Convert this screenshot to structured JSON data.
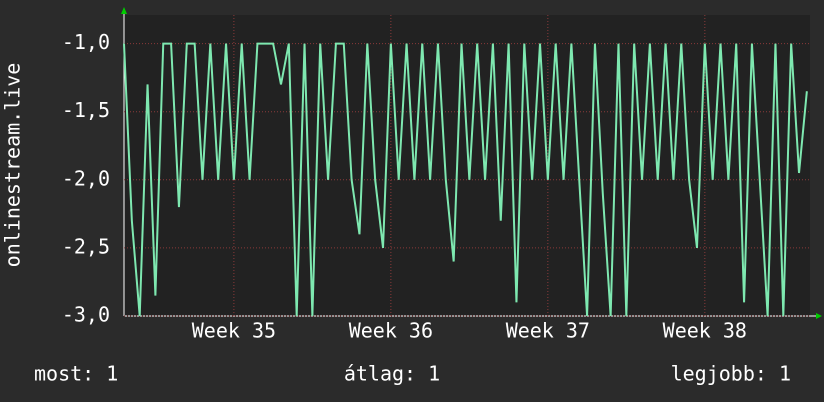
{
  "chart_data": {
    "type": "line",
    "y_label": "onlinestream.live",
    "xlim": [
      34.3,
      38.67
    ],
    "xticks": [
      {
        "value": 35,
        "label": "Week 35"
      },
      {
        "value": 36,
        "label": "Week 36"
      },
      {
        "value": 37,
        "label": "Week 37"
      },
      {
        "value": 38,
        "label": "Week 38"
      }
    ],
    "ylim": [
      -3,
      -0.79
    ],
    "yticks": [
      {
        "value": -3,
        "label": "-3,0"
      },
      {
        "value": -2.5,
        "label": "-2,5"
      },
      {
        "value": -2,
        "label": "-2,0"
      },
      {
        "value": -1.5,
        "label": "-1,5"
      },
      {
        "value": -1,
        "label": "-1,0"
      }
    ],
    "grid": true,
    "series": [
      {
        "color": "#7ee8b0",
        "x": [
          34.3,
          34.35,
          34.4,
          34.45,
          34.5,
          34.55,
          34.6,
          34.65,
          34.7,
          34.75,
          34.8,
          34.85,
          34.9,
          34.95,
          35.0,
          35.05,
          35.1,
          35.15,
          35.2,
          35.25,
          35.3,
          35.35,
          35.4,
          35.45,
          35.5,
          35.55,
          35.6,
          35.65,
          35.7,
          35.75,
          35.8,
          35.85,
          35.9,
          35.95,
          36.0,
          36.05,
          36.1,
          36.15,
          36.2,
          36.25,
          36.3,
          36.35,
          36.4,
          36.45,
          36.5,
          36.55,
          36.6,
          36.65,
          36.7,
          36.75,
          36.8,
          36.85,
          36.9,
          36.95,
          37.0,
          37.05,
          37.1,
          37.15,
          37.2,
          37.25,
          37.3,
          37.35,
          37.4,
          37.45,
          37.5,
          37.55,
          37.6,
          37.65,
          37.7,
          37.75,
          37.8,
          37.85,
          37.9,
          37.95,
          38.0,
          38.05,
          38.1,
          38.15,
          38.2,
          38.25,
          38.3,
          38.35,
          38.4,
          38.45,
          38.5,
          38.55,
          38.6,
          38.65
        ],
        "values": [
          -1.0,
          -2.3,
          -3.0,
          -1.3,
          -2.85,
          -1.0,
          -1.0,
          -2.2,
          -1.0,
          -1.0,
          -2.0,
          -1.0,
          -2.0,
          -1.0,
          -2.0,
          -1.0,
          -2.0,
          -1.0,
          -1.0,
          -1.0,
          -1.3,
          -1.0,
          -3.0,
          -1.0,
          -3.0,
          -1.0,
          -2.0,
          -1.0,
          -1.0,
          -2.0,
          -2.4,
          -1.0,
          -2.0,
          -2.5,
          -1.0,
          -2.0,
          -1.0,
          -2.0,
          -1.0,
          -2.0,
          -1.0,
          -2.0,
          -2.6,
          -1.0,
          -2.0,
          -1.0,
          -2.0,
          -1.0,
          -2.3,
          -1.0,
          -2.9,
          -1.0,
          -2.0,
          -1.0,
          -2.0,
          -1.0,
          -2.0,
          -1.0,
          -2.0,
          -3.0,
          -1.0,
          -2.1,
          -3.0,
          -1.0,
          -3.0,
          -1.0,
          -2.0,
          -1.0,
          -2.0,
          -1.0,
          -2.0,
          -1.0,
          -2.0,
          -2.5,
          -1.0,
          -2.0,
          -1.0,
          -2.0,
          -1.0,
          -2.9,
          -1.0,
          -2.0,
          -3.0,
          -1.0,
          -3.0,
          -1.0,
          -1.95,
          -1.35
        ]
      }
    ],
    "stats": [
      "most: 1",
      "átlag: 1",
      "legjobb: 1"
    ]
  }
}
